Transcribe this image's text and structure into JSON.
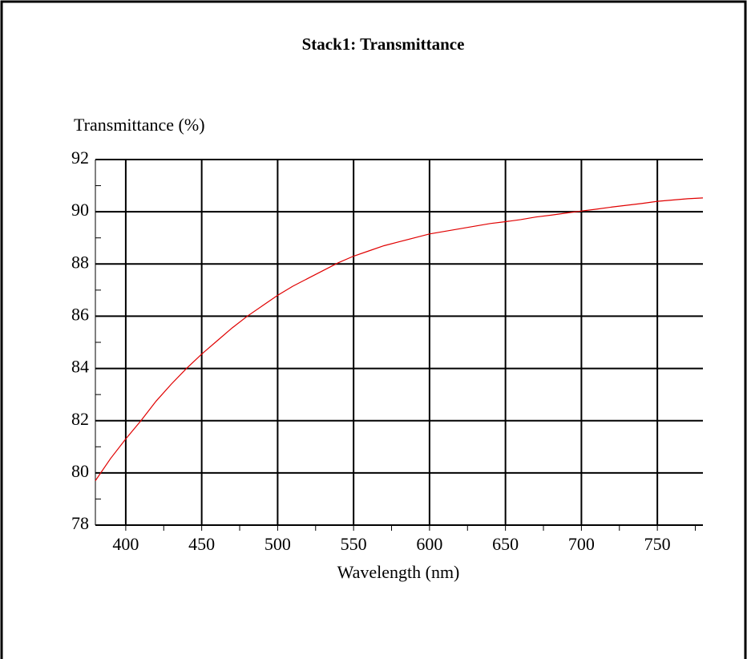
{
  "chart_data": {
    "type": "line",
    "title": "Stack1: Transmittance",
    "y_label": "Transmittance (%)",
    "x_label": "Wavelength (nm)",
    "x": [
      380,
      390,
      400,
      410,
      420,
      430,
      440,
      450,
      460,
      470,
      480,
      490,
      500,
      510,
      520,
      530,
      540,
      550,
      560,
      570,
      580,
      590,
      600,
      610,
      620,
      630,
      640,
      650,
      660,
      670,
      680,
      690,
      700,
      710,
      720,
      730,
      740,
      750,
      760,
      770,
      780
    ],
    "series": [
      {
        "color": "#e00000",
        "values": [
          79.7,
          80.55,
          81.3,
          82.0,
          82.75,
          83.4,
          84.0,
          84.55,
          85.05,
          85.55,
          86.0,
          86.4,
          86.8,
          87.15,
          87.45,
          87.75,
          88.05,
          88.3,
          88.5,
          88.7,
          88.85,
          89.0,
          89.15,
          89.25,
          89.35,
          89.45,
          89.55,
          89.62,
          89.7,
          89.8,
          89.87,
          89.95,
          90.03,
          90.1,
          90.18,
          90.25,
          90.32,
          90.4,
          90.45,
          90.5,
          90.53
        ]
      }
    ],
    "xlim": [
      380,
      780
    ],
    "ylim": [
      78,
      92
    ],
    "xticks": [
      400,
      450,
      500,
      550,
      600,
      650,
      700,
      750
    ],
    "yticks": [
      78,
      80,
      82,
      84,
      86,
      88,
      90,
      92
    ],
    "minor_xticks": [
      425,
      475,
      525,
      575,
      625,
      675,
      725,
      775
    ],
    "minor_yticks": [
      79,
      81,
      83,
      85,
      87,
      89,
      91
    ],
    "grid": true
  }
}
